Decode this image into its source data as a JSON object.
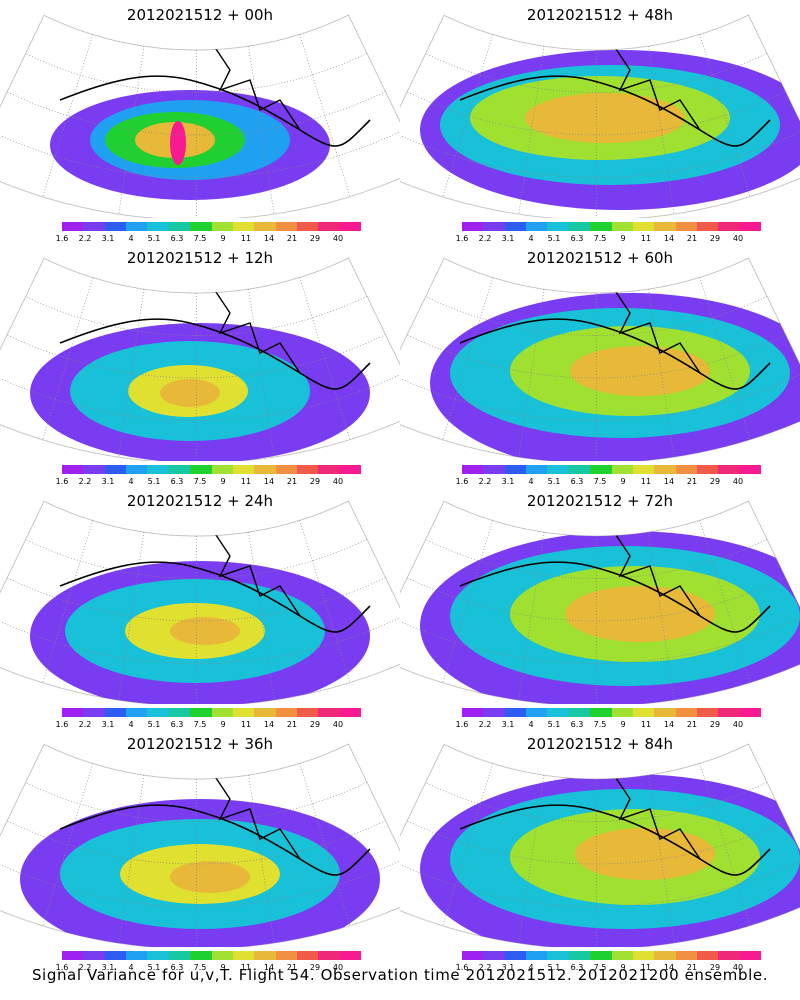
{
  "caption": "Signal Variance for u,v,T. Flight 54. Observation time 2012021512. 2012021200 ensemble.",
  "colorbar": {
    "labels": [
      "1.6",
      "2.2",
      "3.1",
      "4",
      "5.1",
      "6.3",
      "7.5",
      "9",
      "11",
      "14",
      "21",
      "29",
      "40"
    ],
    "colors": [
      "#a020f0",
      "#7a3cf0",
      "#2d5cf0",
      "#1fa0f0",
      "#18c0d8",
      "#18c8a0",
      "#20d030",
      "#a0e030",
      "#e0e030",
      "#e8b838",
      "#f09040",
      "#f05a48",
      "#f02878",
      "#f81a90"
    ]
  },
  "chart_data": [
    {
      "type": "heatmap",
      "title": "2012021512 + 00h",
      "peak_value": 40,
      "colorbar_levels": [
        1.6,
        2.2,
        3.1,
        4,
        5.1,
        6.3,
        7.5,
        9,
        11,
        14,
        21,
        29,
        40
      ]
    },
    {
      "type": "heatmap",
      "title": "2012021512 + 48h",
      "peak_value": 14,
      "colorbar_levels": [
        1.6,
        2.2,
        3.1,
        4,
        5.1,
        6.3,
        7.5,
        9,
        11,
        14,
        21,
        29,
        40
      ]
    },
    {
      "type": "heatmap",
      "title": "2012021512 + 12h",
      "peak_value": 14,
      "colorbar_levels": [
        1.6,
        2.2,
        3.1,
        4,
        5.1,
        6.3,
        7.5,
        9,
        11,
        14,
        21,
        29,
        40
      ]
    },
    {
      "type": "heatmap",
      "title": "2012021512 + 60h",
      "peak_value": 14,
      "colorbar_levels": [
        1.6,
        2.2,
        3.1,
        4,
        5.1,
        6.3,
        7.5,
        9,
        11,
        14,
        21,
        29,
        40
      ]
    },
    {
      "type": "heatmap",
      "title": "2012021512 + 24h",
      "peak_value": 14,
      "colorbar_levels": [
        1.6,
        2.2,
        3.1,
        4,
        5.1,
        6.3,
        7.5,
        9,
        11,
        14,
        21,
        29,
        40
      ]
    },
    {
      "type": "heatmap",
      "title": "2012021512 + 72h",
      "peak_value": 14,
      "colorbar_levels": [
        1.6,
        2.2,
        3.1,
        4,
        5.1,
        6.3,
        7.5,
        9,
        11,
        14,
        21,
        29,
        40
      ]
    },
    {
      "type": "heatmap",
      "title": "2012021512 + 36h",
      "peak_value": 14,
      "colorbar_levels": [
        1.6,
        2.2,
        3.1,
        4,
        5.1,
        6.3,
        7.5,
        9,
        11,
        14,
        21,
        29,
        40
      ]
    },
    {
      "type": "heatmap",
      "title": "2012021512 + 84h",
      "peak_value": 14,
      "colorbar_levels": [
        1.6,
        2.2,
        3.1,
        4,
        5.1,
        6.3,
        7.5,
        9,
        11,
        14,
        21,
        29,
        40
      ]
    }
  ]
}
